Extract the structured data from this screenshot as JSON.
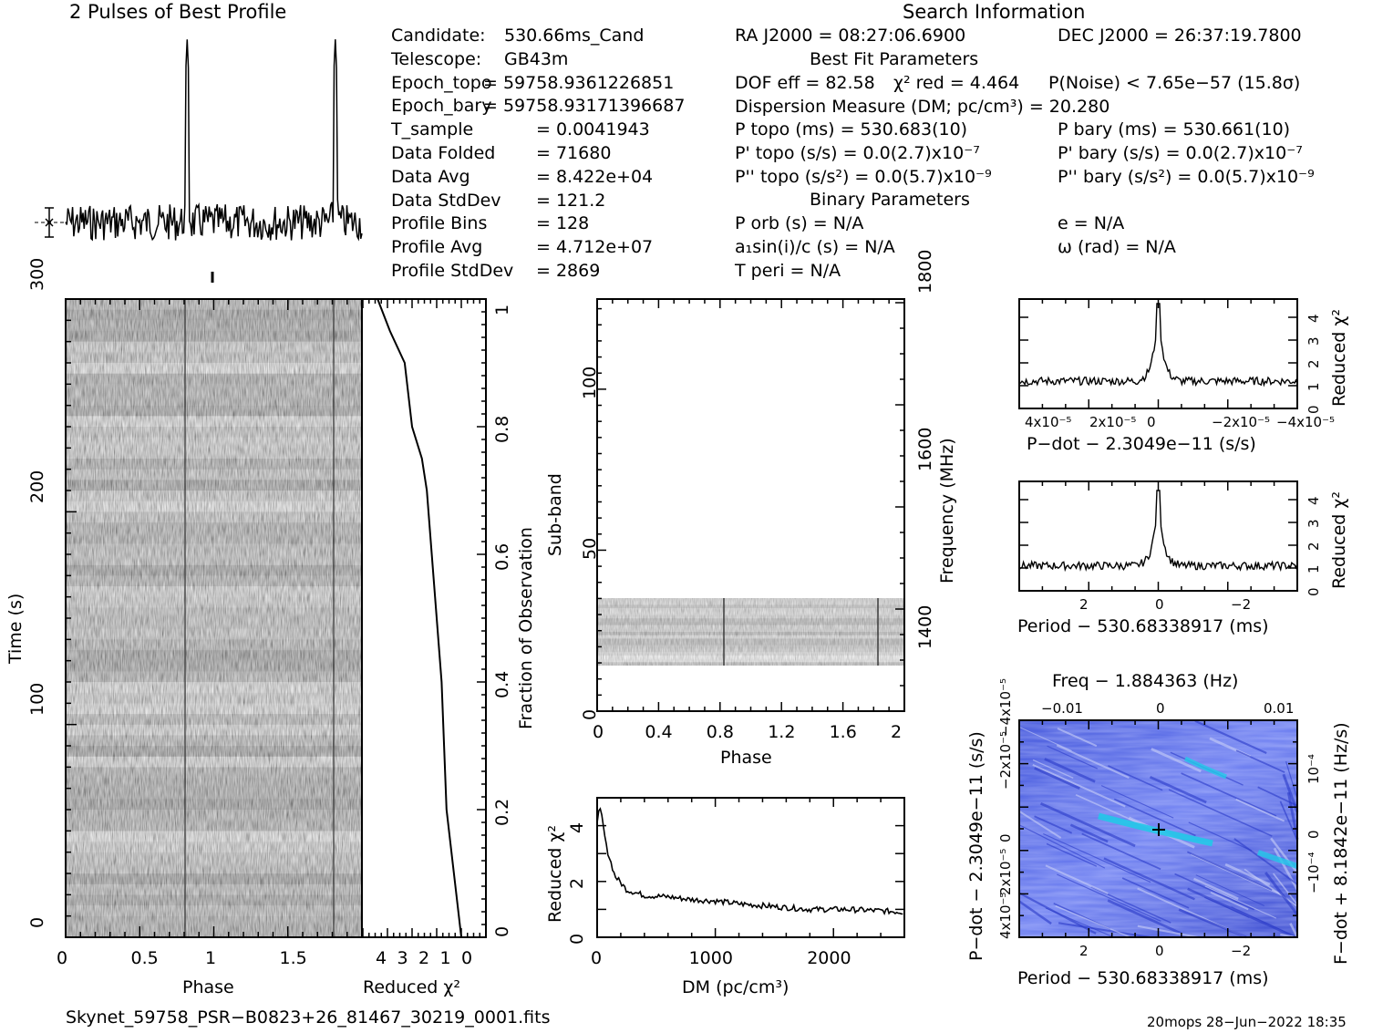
{
  "profile": {
    "title": "2 Pulses of Best Profile"
  },
  "search_info": {
    "title": "Search Information"
  },
  "candidate": [
    {
      "label": "Candidate:",
      "value": "530.66ms_Cand"
    },
    {
      "label": "Telescope:",
      "value": "GB43m"
    },
    {
      "label": "Epoch_topo",
      "value": "= 59758.9361226851"
    },
    {
      "label": "Epoch_bary",
      "value": "= 59758.93171396687"
    },
    {
      "label": "T_sample",
      "value": "= 0.0041943"
    },
    {
      "label": "Data Folded",
      "value": "= 71680"
    },
    {
      "label": "Data Avg",
      "value": "= 8.422e+04"
    },
    {
      "label": "Data StdDev",
      "value": "= 121.2"
    },
    {
      "label": "Profile Bins",
      "value": "= 128"
    },
    {
      "label": "Profile Avg",
      "value": "= 4.712e+07"
    },
    {
      "label": "Profile StdDev",
      "value": "= 2869"
    }
  ],
  "ra": "RA J2000 = 08:27:06.6900",
  "dec": "DEC J2000 = 26:37:19.7800",
  "best_fit_title": "Best Fit Parameters",
  "best_fit": {
    "dof": "DOF eff = 82.58",
    "chi2": "χ² red = 4.464",
    "pnoise": "P(Noise) < 7.65e−57  (15.8σ)",
    "dm": "Dispersion Measure (DM; pc/cm³) = 20.280",
    "p_topo": "P topo (ms) =  530.683(10)",
    "p_bary": "P bary (ms) =  530.661(10)",
    "pd_topo": "P' topo (s/s) = 0.0(2.7)x10⁻⁷",
    "pd_bary": "P' bary (s/s) = 0.0(2.7)x10⁻⁷",
    "pdd_topo": "P'' topo (s/s²) = 0.0(5.7)x10⁻⁹",
    "pdd_bary": "P'' bary (s/s²) = 0.0(5.7)x10⁻⁹"
  },
  "binary_title": "Binary Parameters",
  "binary": {
    "porb": "P orb (s) = N/A",
    "e": "e = N/A",
    "a1": "a₁sin(i)/c (s) = N/A",
    "omega": "ω (rad) = N/A",
    "tperi": "T peri = N/A"
  },
  "footer": {
    "filename": "Skynet_59758_PSR−B0823+26_81467_30219_0001.fits",
    "stamp": "20mops 28−Jun−2022 18:35"
  },
  "chart_data": [
    {
      "type": "line",
      "name": "profile",
      "x_range": [
        0,
        2
      ],
      "pulse_phases": [
        0.82,
        1.82
      ]
    },
    {
      "type": "heatmap",
      "name": "time-phase",
      "xlabel": "Phase",
      "ylabel": "Time (s)",
      "xlim": [
        0,
        2
      ],
      "ylim": [
        0,
        300
      ],
      "xticks": [
        "0",
        "0.5",
        "1",
        "1.5"
      ],
      "yticks": [
        "0",
        "100",
        "200",
        "300"
      ]
    },
    {
      "type": "line",
      "name": "reduced-chi2-vs-fraction",
      "xlabel": "Reduced χ²",
      "ylabel": "Fraction of Observation",
      "xticks": [
        "4",
        "3",
        "2",
        "1",
        "0"
      ],
      "yticks": [
        "0",
        "0.2",
        "0.4",
        "0.6",
        "0.8",
        "1"
      ],
      "x": [
        1.0,
        1.3,
        1.6,
        1.7,
        1.8,
        2.0,
        2.2,
        2.4,
        2.6,
        3.0,
        3.3,
        3.9,
        4.4
      ],
      "y": [
        0.0,
        0.1,
        0.2,
        0.3,
        0.4,
        0.5,
        0.6,
        0.7,
        0.75,
        0.8,
        0.9,
        0.95,
        1.0
      ]
    },
    {
      "type": "heatmap",
      "name": "subband-phase",
      "xlabel": "Phase",
      "ylabel": "Sub-band",
      "ylabel_right": "Frequency (MHz)",
      "xlim": [
        0,
        2
      ],
      "ylim": [
        0,
        128
      ],
      "xticks": [
        "0",
        "0.4",
        "0.8",
        "1.2",
        "1.6",
        "2"
      ],
      "yticks": [
        "0",
        "50",
        "100"
      ],
      "freq_ticks": [
        "1400",
        "1600",
        "1800"
      ],
      "active_subbands": [
        15,
        35
      ]
    },
    {
      "type": "line",
      "name": "dm-chi2",
      "xlabel": "DM (pc/cm³)",
      "ylabel": "Reduced χ²",
      "xlim": [
        0,
        2600
      ],
      "ylim": [
        0,
        5
      ],
      "xticks": [
        "0",
        "1000",
        "2000"
      ],
      "yticks": [
        "0",
        "2",
        "4"
      ],
      "x": [
        0,
        20,
        40,
        80,
        150,
        250,
        400,
        600,
        800,
        1000,
        1200,
        1500,
        1800,
        2100,
        2400,
        2600
      ],
      "y": [
        4.2,
        4.6,
        4.3,
        3.2,
        2.2,
        1.7,
        1.5,
        1.45,
        1.35,
        1.3,
        1.2,
        1.1,
        1.0,
        1.0,
        0.95,
        0.9
      ]
    },
    {
      "type": "line",
      "name": "pdot-chi2",
      "xlabel": "P−dot − 2.3049e−11 (s/s)",
      "ylabel": "Reduced χ²",
      "xticks": [
        "4x10⁻⁵",
        "2x10⁻⁵",
        "0",
        "−2x10⁻⁵",
        "−4x10⁻⁵"
      ],
      "yticks": [
        "0",
        "1",
        "2",
        "3",
        "4"
      ],
      "peak": 4.6,
      "baseline": 1.2
    },
    {
      "type": "line",
      "name": "period-chi2",
      "xlabel": "Period − 530.68338917 (ms)",
      "ylabel": "Reduced χ²",
      "xticks": [
        "2",
        "0",
        "−2"
      ],
      "yticks": [
        "0",
        "1",
        "2",
        "3",
        "4"
      ],
      "peak": 4.4,
      "baseline": 1.1
    },
    {
      "type": "heatmap",
      "name": "period-pdot",
      "title": "Freq − 1.884363 (Hz)",
      "xlabel": "Period − 530.68338917 (ms)",
      "ylabel": "P−dot − 2.3049e−11 (s/s)",
      "ylabel_right": "F−dot + 8.1842e−11 (Hz/s)",
      "xticks": [
        "2",
        "0",
        "−2"
      ],
      "top_ticks": [
        "−0.01",
        "0",
        "0.01"
      ],
      "yticks": [
        "4x10⁻⁵",
        "2x10⁻⁵",
        "0",
        "−2x10⁻⁵",
        "−4x10⁻⁵"
      ],
      "right_ticks": [
        "10⁻⁴",
        "0",
        "−10⁻⁴"
      ]
    }
  ]
}
